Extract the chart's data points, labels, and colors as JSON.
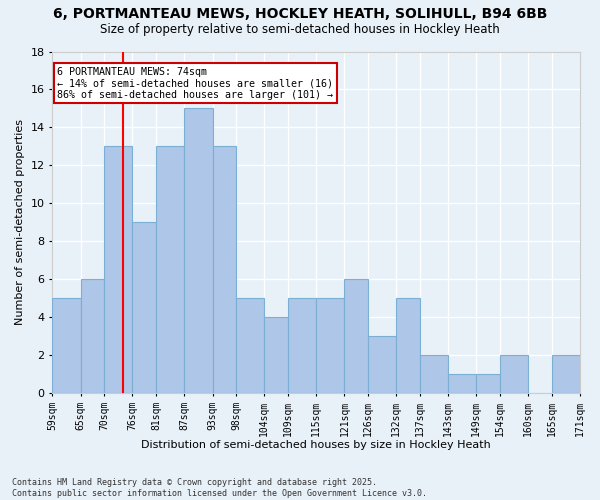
{
  "title": "6, PORTMANTEAU MEWS, HOCKLEY HEATH, SOLIHULL, B94 6BB",
  "subtitle": "Size of property relative to semi-detached houses in Hockley Heath",
  "xlabel": "Distribution of semi-detached houses by size in Hockley Heath",
  "ylabel": "Number of semi-detached properties",
  "bins": [
    59,
    65,
    70,
    76,
    81,
    87,
    93,
    98,
    104,
    109,
    115,
    121,
    126,
    132,
    137,
    143,
    149,
    154,
    160,
    165,
    171
  ],
  "counts": [
    5,
    6,
    13,
    9,
    13,
    15,
    13,
    5,
    4,
    5,
    5,
    6,
    3,
    5,
    2,
    1,
    1,
    2,
    0,
    2
  ],
  "bar_color": "#aec6e8",
  "bar_edge_color": "#7bafd4",
  "property_size": 74,
  "red_line_x": 74,
  "annotation_text": "6 PORTMANTEAU MEWS: 74sqm\n← 14% of semi-detached houses are smaller (16)\n86% of semi-detached houses are larger (101) →",
  "annotation_box_color": "#ffffff",
  "annotation_box_edge": "#cc0000",
  "ylim": [
    0,
    18
  ],
  "yticks": [
    0,
    2,
    4,
    6,
    8,
    10,
    12,
    14,
    16,
    18
  ],
  "bg_color": "#e8f0f8",
  "grid_color": "#ffffff",
  "footer": "Contains HM Land Registry data © Crown copyright and database right 2025.\nContains public sector information licensed under the Open Government Licence v3.0.",
  "tick_labels": [
    "59sqm",
    "65sqm",
    "70sqm",
    "76sqm",
    "81sqm",
    "87sqm",
    "93sqm",
    "98sqm",
    "104sqm",
    "109sqm",
    "115sqm",
    "121sqm",
    "126sqm",
    "132sqm",
    "137sqm",
    "143sqm",
    "149sqm",
    "154sqm",
    "160sqm",
    "165sqm",
    "171sqm"
  ]
}
